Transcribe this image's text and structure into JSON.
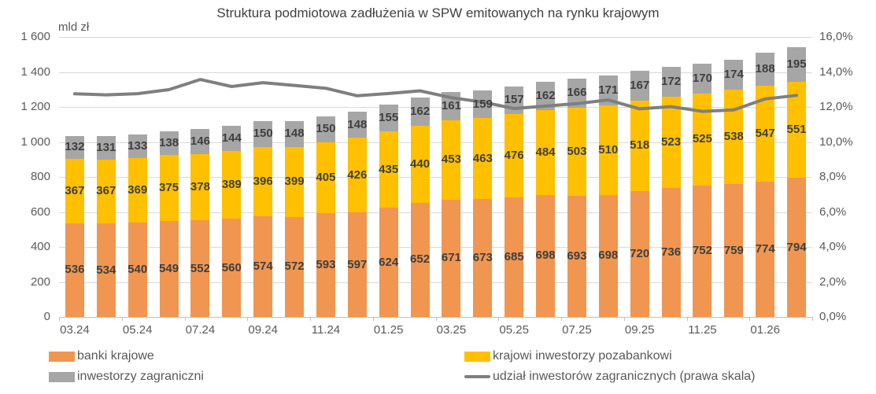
{
  "title": "Struktura podmiotowa zadłużenia w SPW emitowanych na rynku krajowym",
  "left_axis": {
    "unit": "mld zł",
    "min": 0,
    "max": 1600,
    "step": 200,
    "tick_labels": [
      "0",
      "200",
      "400",
      "600",
      "800",
      "1 000",
      "1 200",
      "1 400",
      "1 600"
    ]
  },
  "right_axis": {
    "min": 0,
    "max": 16,
    "step": 2,
    "tick_labels": [
      "0,0%",
      "2,0%",
      "4,0%",
      "6,0%",
      "8,0%",
      "10,0%",
      "12,0%",
      "14,0%",
      "16,0%"
    ]
  },
  "chart_data": {
    "type": "bar",
    "subtype": "stacked-bars-with-line-overlay",
    "n_bars": 24,
    "x_tick_labels": [
      "03.24",
      "05.24",
      "07.24",
      "09.24",
      "11.24",
      "01.25",
      "03.25",
      "05.25",
      "07.25",
      "09.25",
      "11.25",
      "01.26"
    ],
    "x_tick_label_every_n_bars": 2,
    "grid": "horizontal",
    "series": [
      {
        "name": "banki krajowe",
        "key": "banki-krajowe",
        "color": "#F09650",
        "values": [
          536,
          534,
          540,
          549,
          552,
          560,
          574,
          572,
          593,
          597,
          624,
          652,
          671,
          673,
          685,
          698,
          693,
          698,
          720,
          736,
          752,
          759,
          774,
          794
        ]
      },
      {
        "name": "krajowi inwestorzy pozabankowi",
        "key": "krajowi-inwestorzy-pozabankowi",
        "color": "#FFC000",
        "values": [
          367,
          367,
          369,
          375,
          378,
          389,
          396,
          399,
          405,
          426,
          435,
          440,
          453,
          463,
          476,
          484,
          503,
          510,
          518,
          523,
          525,
          538,
          547,
          551
        ]
      },
      {
        "name": "inwestorzy zagraniczni",
        "key": "inwestorzy-zagraniczni",
        "color": "#A6A6A6",
        "values": [
          132,
          131,
          133,
          138,
          146,
          144,
          150,
          148,
          150,
          148,
          155,
          162,
          161,
          159,
          157,
          162,
          166,
          171,
          167,
          172,
          170,
          174,
          188,
          195
        ]
      }
    ],
    "line_series": {
      "name": "udział inwestorów zagranicznych (prawa skala)",
      "key": "udzial-inwestorow-zagranicznych",
      "axis": "right",
      "color": "#7F7F7F",
      "values_pct": [
        12.75,
        12.69,
        12.76,
        12.99,
        13.57,
        13.17,
        13.39,
        13.23,
        13.07,
        12.64,
        12.77,
        12.92,
        12.53,
        12.28,
        11.91,
        12.05,
        12.19,
        12.4,
        11.89,
        12.02,
        11.75,
        11.83,
        12.46,
        12.66
      ]
    }
  },
  "legend": [
    {
      "label": "banki krajowe",
      "marker": "rect",
      "color": "#F09650"
    },
    {
      "label": "krajowi inwestorzy pozabankowi",
      "marker": "rect",
      "color": "#FFC000"
    },
    {
      "label": "inwestorzy zagraniczni",
      "marker": "rect",
      "color": "#A6A6A6"
    },
    {
      "label": "udział inwestorów zagranicznych (prawa skala)",
      "marker": "line",
      "color": "#7F7F7F"
    }
  ],
  "colors": {
    "gridline": "#D9D9D9",
    "axis_text": "#595959",
    "data_label": "#3F3F3F",
    "title_text": "#404040"
  }
}
